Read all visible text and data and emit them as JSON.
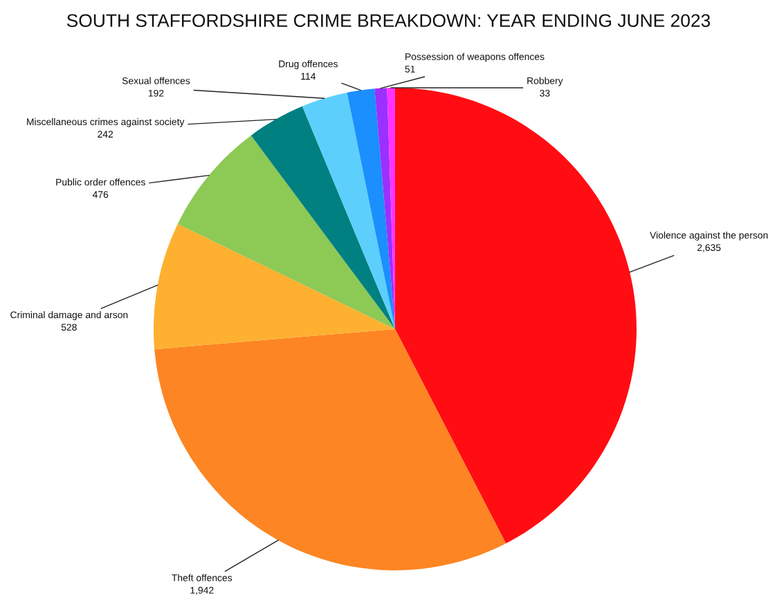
{
  "chart_data": {
    "type": "pie",
    "title": "SOUTH STAFFORDSHIRE CRIME BREAKDOWN: YEAR ENDING JUNE 2023",
    "categories": [
      "Violence against the person",
      "Theft offences",
      "Criminal damage and arson",
      "Public order offences",
      "Miscellaneous crimes against society",
      "Sexual offences",
      "Drug offences",
      "Possession of weapons offences",
      "Robbery"
    ],
    "values": [
      2635,
      1942,
      528,
      476,
      242,
      192,
      114,
      51,
      33
    ],
    "value_labels": [
      "2,635",
      "1,942",
      "528",
      "476",
      "242",
      "192",
      "114",
      "51",
      "33"
    ],
    "colors": [
      "#ff0d12",
      "#fd8523",
      "#feb030",
      "#8dc955",
      "#008080",
      "#5dcffd",
      "#1a8ffd",
      "#9b30ff",
      "#ff33ff"
    ]
  }
}
